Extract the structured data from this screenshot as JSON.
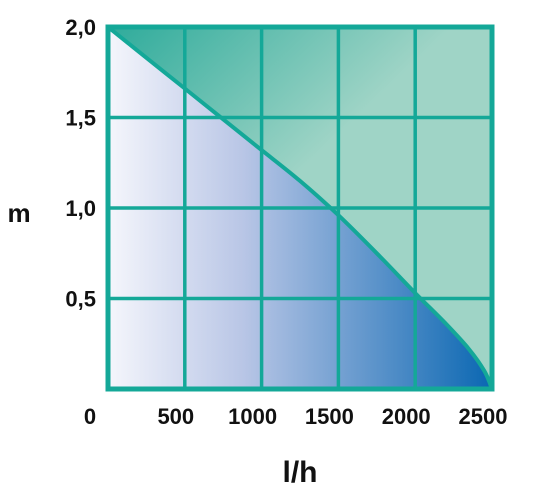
{
  "chart_data": {
    "type": "area",
    "title": "",
    "xlabel": "l/h",
    "ylabel": "m",
    "xlim": [
      0,
      2500
    ],
    "ylim": [
      0,
      2.0
    ],
    "x_ticks": [
      0,
      500,
      1000,
      1500,
      2000,
      2500
    ],
    "y_ticks": [
      0.5,
      1.0,
      1.5,
      2.0
    ],
    "x_tick_labels": [
      "0",
      "500",
      "1000",
      "1500",
      "2000",
      "2500"
    ],
    "y_tick_labels": [
      "0,5",
      "1,0",
      "1,5",
      "2,0"
    ],
    "grid": true,
    "series": [
      {
        "x": [
          0,
          250,
          500,
          750,
          1000,
          1250,
          1500,
          1750,
          2000,
          2200,
          2350,
          2450,
          2500
        ],
        "y": [
          2.0,
          1.83,
          1.66,
          1.49,
          1.32,
          1.15,
          0.96,
          0.75,
          0.53,
          0.36,
          0.22,
          0.1,
          0.0
        ]
      }
    ],
    "colors": {
      "frame": "#14a898",
      "upper_fill": "#9fd4c6",
      "upper_fill_top": "#2eab9b",
      "under_fill_start": "#f5f6fc",
      "under_fill_end": "#0a67b2",
      "curve": "#14a898"
    }
  }
}
